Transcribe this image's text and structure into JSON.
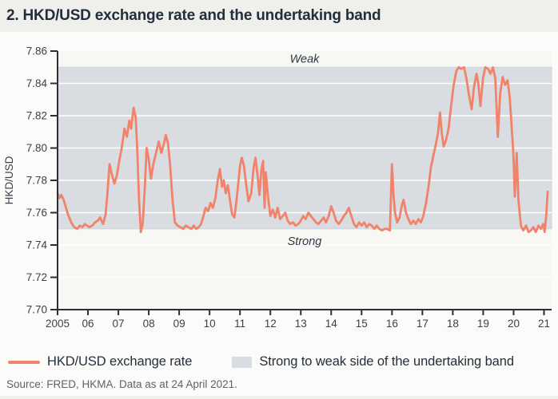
{
  "title": "2. HKD/USD exchange rate and the undertaking band",
  "legend": {
    "line_label": "HKD/USD exchange rate",
    "band_label": "Strong to weak side of the undertaking band"
  },
  "source": "Source: FRED, HKMA. Data as at 24 April 2021.",
  "colors": {
    "line": "#F0836A",
    "band_fill": "#D9DCE0",
    "band_edge": "#CFD3D7",
    "plot_bg": "#F7F7F4",
    "grid": "#FFFFFF",
    "axis": "#2E2E36",
    "tick_text": "#3B4148",
    "annotation_text": "#2E3947",
    "title_text": "#232E3C",
    "page_bg": "#EFEFEC",
    "card_bg": "#FBFBF9"
  },
  "chart_data": {
    "type": "line",
    "title": "2. HKD/USD exchange rate and the undertaking band",
    "xlabel": "",
    "ylabel": "HKD/USD",
    "ylim": [
      7.7,
      7.86
    ],
    "xlim": [
      2005,
      2021.25
    ],
    "grid": "horizontal white lines every 0.02",
    "legend_position": "bottom",
    "y_ticks": [
      [
        7.86,
        "7.86"
      ],
      [
        7.84,
        "7.84"
      ],
      [
        7.82,
        "7.82"
      ],
      [
        7.8,
        "7.80"
      ],
      [
        7.78,
        "7.78"
      ],
      [
        7.76,
        "7.76"
      ],
      [
        7.74,
        "7.74"
      ],
      [
        7.72,
        "7.72"
      ],
      [
        7.7,
        "7.70"
      ]
    ],
    "x_ticks": [
      [
        2005,
        "2005"
      ],
      [
        2006,
        "06"
      ],
      [
        2007,
        "07"
      ],
      [
        2008,
        "08"
      ],
      [
        2009,
        "09"
      ],
      [
        2010,
        "10"
      ],
      [
        2011,
        "11"
      ],
      [
        2012,
        "12"
      ],
      [
        2013,
        "13"
      ],
      [
        2014,
        "14"
      ],
      [
        2015,
        "15"
      ],
      [
        2016,
        "16"
      ],
      [
        2017,
        "17"
      ],
      [
        2018,
        "18"
      ],
      [
        2019,
        "19"
      ],
      [
        2020,
        "20"
      ],
      [
        2021,
        "21"
      ]
    ],
    "band": {
      "from": 7.75,
      "to": 7.85,
      "label": "Strong to weak side of the undertaking band"
    },
    "annotations": [
      {
        "text": "Weak",
        "anchor_value": 7.85,
        "dy": -6
      },
      {
        "text": "Strong",
        "anchor_value": 7.75,
        "dy": 20
      }
    ],
    "series": [
      {
        "name": "HKD/USD exchange rate",
        "points": [
          [
            2005.0,
            7.772
          ],
          [
            2005.06,
            7.769
          ],
          [
            2005.12,
            7.771
          ],
          [
            2005.2,
            7.768
          ],
          [
            2005.28,
            7.763
          ],
          [
            2005.36,
            7.758
          ],
          [
            2005.45,
            7.754
          ],
          [
            2005.55,
            7.751
          ],
          [
            2005.65,
            7.75
          ],
          [
            2005.73,
            7.752
          ],
          [
            2005.82,
            7.751
          ],
          [
            2005.9,
            7.753
          ],
          [
            2005.97,
            7.752
          ],
          [
            2006.05,
            7.751
          ],
          [
            2006.14,
            7.752
          ],
          [
            2006.23,
            7.754
          ],
          [
            2006.32,
            7.755
          ],
          [
            2006.4,
            7.757
          ],
          [
            2006.5,
            7.753
          ],
          [
            2006.58,
            7.759
          ],
          [
            2006.64,
            7.772
          ],
          [
            2006.71,
            7.79
          ],
          [
            2006.78,
            7.784
          ],
          [
            2006.87,
            7.778
          ],
          [
            2006.95,
            7.783
          ],
          [
            2007.03,
            7.792
          ],
          [
            2007.12,
            7.801
          ],
          [
            2007.2,
            7.812
          ],
          [
            2007.28,
            7.807
          ],
          [
            2007.36,
            7.817
          ],
          [
            2007.42,
            7.812
          ],
          [
            2007.5,
            7.825
          ],
          [
            2007.57,
            7.819
          ],
          [
            2007.62,
            7.8
          ],
          [
            2007.68,
            7.768
          ],
          [
            2007.74,
            7.748
          ],
          [
            2007.8,
            7.753
          ],
          [
            2007.87,
            7.775
          ],
          [
            2007.93,
            7.8
          ],
          [
            2008.0,
            7.793
          ],
          [
            2008.07,
            7.781
          ],
          [
            2008.15,
            7.79
          ],
          [
            2008.24,
            7.797
          ],
          [
            2008.33,
            7.804
          ],
          [
            2008.41,
            7.797
          ],
          [
            2008.49,
            7.802
          ],
          [
            2008.56,
            7.808
          ],
          [
            2008.63,
            7.803
          ],
          [
            2008.7,
            7.79
          ],
          [
            2008.78,
            7.768
          ],
          [
            2008.86,
            7.754
          ],
          [
            2008.95,
            7.752
          ],
          [
            2009.04,
            7.751
          ],
          [
            2009.13,
            7.75
          ],
          [
            2009.22,
            7.752
          ],
          [
            2009.3,
            7.751
          ],
          [
            2009.4,
            7.75
          ],
          [
            2009.48,
            7.752
          ],
          [
            2009.56,
            7.75
          ],
          [
            2009.64,
            7.751
          ],
          [
            2009.72,
            7.753
          ],
          [
            2009.8,
            7.758
          ],
          [
            2009.87,
            7.763
          ],
          [
            2009.95,
            7.761
          ],
          [
            2010.03,
            7.766
          ],
          [
            2010.11,
            7.763
          ],
          [
            2010.19,
            7.769
          ],
          [
            2010.27,
            7.78
          ],
          [
            2010.34,
            7.787
          ],
          [
            2010.41,
            7.776
          ],
          [
            2010.47,
            7.78
          ],
          [
            2010.53,
            7.772
          ],
          [
            2010.6,
            7.777
          ],
          [
            2010.67,
            7.768
          ],
          [
            2010.74,
            7.759
          ],
          [
            2010.82,
            7.757
          ],
          [
            2010.91,
            7.772
          ],
          [
            2011.0,
            7.789
          ],
          [
            2011.06,
            7.794
          ],
          [
            2011.13,
            7.789
          ],
          [
            2011.2,
            7.778
          ],
          [
            2011.28,
            7.767
          ],
          [
            2011.37,
            7.772
          ],
          [
            2011.45,
            7.788
          ],
          [
            2011.51,
            7.794
          ],
          [
            2011.58,
            7.783
          ],
          [
            2011.64,
            7.771
          ],
          [
            2011.7,
            7.786
          ],
          [
            2011.76,
            7.792
          ],
          [
            2011.81,
            7.763
          ],
          [
            2011.85,
            7.785
          ],
          [
            2011.92,
            7.77
          ],
          [
            2012.0,
            7.758
          ],
          [
            2012.08,
            7.762
          ],
          [
            2012.16,
            7.757
          ],
          [
            2012.24,
            7.763
          ],
          [
            2012.32,
            7.756
          ],
          [
            2012.41,
            7.758
          ],
          [
            2012.49,
            7.76
          ],
          [
            2012.57,
            7.755
          ],
          [
            2012.65,
            7.753
          ],
          [
            2012.74,
            7.754
          ],
          [
            2012.83,
            7.752
          ],
          [
            2012.92,
            7.753
          ],
          [
            2013.0,
            7.755
          ],
          [
            2013.08,
            7.758
          ],
          [
            2013.16,
            7.756
          ],
          [
            2013.25,
            7.76
          ],
          [
            2013.33,
            7.758
          ],
          [
            2013.42,
            7.756
          ],
          [
            2013.5,
            7.754
          ],
          [
            2013.58,
            7.753
          ],
          [
            2013.67,
            7.755
          ],
          [
            2013.75,
            7.757
          ],
          [
            2013.83,
            7.754
          ],
          [
            2013.92,
            7.758
          ],
          [
            2014.0,
            7.764
          ],
          [
            2014.08,
            7.76
          ],
          [
            2014.16,
            7.755
          ],
          [
            2014.25,
            7.753
          ],
          [
            2014.33,
            7.755
          ],
          [
            2014.42,
            7.758
          ],
          [
            2014.5,
            7.76
          ],
          [
            2014.58,
            7.763
          ],
          [
            2014.66,
            7.758
          ],
          [
            2014.75,
            7.753
          ],
          [
            2014.83,
            7.751
          ],
          [
            2014.92,
            7.754
          ],
          [
            2015.0,
            7.752
          ],
          [
            2015.08,
            7.754
          ],
          [
            2015.17,
            7.751
          ],
          [
            2015.25,
            7.753
          ],
          [
            2015.33,
            7.752
          ],
          [
            2015.42,
            7.75
          ],
          [
            2015.5,
            7.752
          ],
          [
            2015.58,
            7.75
          ],
          [
            2015.67,
            7.749
          ],
          [
            2015.76,
            7.75
          ],
          [
            2015.84,
            7.75
          ],
          [
            2015.93,
            7.749
          ],
          [
            2016.0,
            7.79
          ],
          [
            2016.05,
            7.771
          ],
          [
            2016.1,
            7.76
          ],
          [
            2016.17,
            7.754
          ],
          [
            2016.25,
            7.757
          ],
          [
            2016.33,
            7.765
          ],
          [
            2016.38,
            7.768
          ],
          [
            2016.46,
            7.76
          ],
          [
            2016.54,
            7.756
          ],
          [
            2016.62,
            7.753
          ],
          [
            2016.7,
            7.755
          ],
          [
            2016.78,
            7.753
          ],
          [
            2016.87,
            7.756
          ],
          [
            2016.95,
            7.754
          ],
          [
            2017.03,
            7.758
          ],
          [
            2017.12,
            7.766
          ],
          [
            2017.2,
            7.776
          ],
          [
            2017.28,
            7.788
          ],
          [
            2017.37,
            7.796
          ],
          [
            2017.45,
            7.803
          ],
          [
            2017.52,
            7.81
          ],
          [
            2017.58,
            7.822
          ],
          [
            2017.64,
            7.809
          ],
          [
            2017.7,
            7.801
          ],
          [
            2017.78,
            7.805
          ],
          [
            2017.86,
            7.812
          ],
          [
            2017.95,
            7.827
          ],
          [
            2018.03,
            7.839
          ],
          [
            2018.12,
            7.848
          ],
          [
            2018.2,
            7.85
          ],
          [
            2018.28,
            7.849
          ],
          [
            2018.37,
            7.85
          ],
          [
            2018.45,
            7.843
          ],
          [
            2018.53,
            7.833
          ],
          [
            2018.62,
            7.824
          ],
          [
            2018.7,
            7.838
          ],
          [
            2018.78,
            7.846
          ],
          [
            2018.84,
            7.84
          ],
          [
            2018.91,
            7.826
          ],
          [
            2018.99,
            7.843
          ],
          [
            2019.07,
            7.85
          ],
          [
            2019.16,
            7.849
          ],
          [
            2019.24,
            7.846
          ],
          [
            2019.32,
            7.85
          ],
          [
            2019.4,
            7.843
          ],
          [
            2019.48,
            7.807
          ],
          [
            2019.56,
            7.834
          ],
          [
            2019.64,
            7.844
          ],
          [
            2019.72,
            7.839
          ],
          [
            2019.8,
            7.842
          ],
          [
            2019.87,
            7.832
          ],
          [
            2019.93,
            7.815
          ],
          [
            2019.99,
            7.797
          ],
          [
            2020.04,
            7.77
          ],
          [
            2020.1,
            7.797
          ],
          [
            2020.16,
            7.768
          ],
          [
            2020.24,
            7.752
          ],
          [
            2020.32,
            7.749
          ],
          [
            2020.41,
            7.752
          ],
          [
            2020.49,
            7.748
          ],
          [
            2020.57,
            7.749
          ],
          [
            2020.65,
            7.751
          ],
          [
            2020.73,
            7.748
          ],
          [
            2020.82,
            7.752
          ],
          [
            2020.9,
            7.75
          ],
          [
            2020.97,
            7.753
          ],
          [
            2021.02,
            7.748
          ],
          [
            2021.07,
            7.758
          ],
          [
            2021.12,
            7.773
          ]
        ]
      }
    ]
  }
}
